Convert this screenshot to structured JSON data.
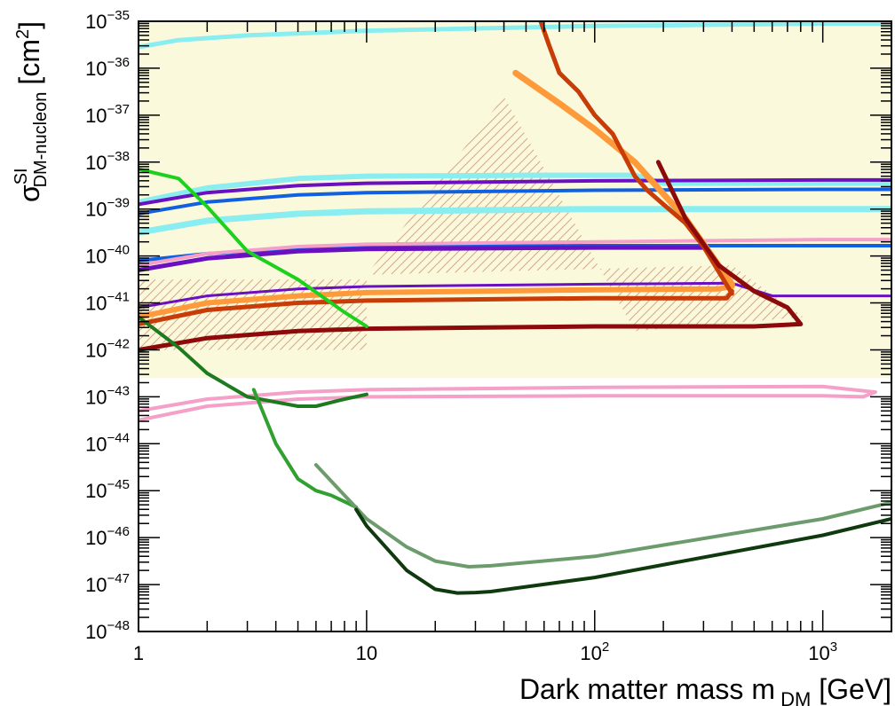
{
  "chart_data": {
    "type": "line",
    "title": "",
    "x_scale": "log",
    "y_scale": "log",
    "xlim": [
      1,
      2000
    ],
    "ylim": [
      1e-48,
      1e-35
    ],
    "grid": false,
    "legend": "none",
    "xlabel": {
      "main": "Dark matter mass m",
      "sub": "DM",
      "unit": " [GeV]"
    },
    "ylabel": {
      "sym": "σ",
      "sup": "SI",
      "sub": "DM-nucleon",
      "unit": "[cm",
      "unit_sup": "2",
      "unit_end": "]"
    },
    "x_ticks": [
      {
        "value": 1,
        "base": "1",
        "exp": ""
      },
      {
        "value": 10,
        "base": "10",
        "exp": ""
      },
      {
        "value": 100,
        "base": "10",
        "exp": "2"
      },
      {
        "value": 1000,
        "base": "10",
        "exp": "3"
      }
    ],
    "y_ticks": [
      {
        "value": -48,
        "base": "10",
        "exp": "−48"
      },
      {
        "value": -47,
        "base": "10",
        "exp": "−47"
      },
      {
        "value": -46,
        "base": "10",
        "exp": "−46"
      },
      {
        "value": -45,
        "base": "10",
        "exp": "−45"
      },
      {
        "value": -44,
        "base": "10",
        "exp": "−44"
      },
      {
        "value": -43,
        "base": "10",
        "exp": "−43"
      },
      {
        "value": -42,
        "base": "10",
        "exp": "−42"
      },
      {
        "value": -41,
        "base": "10",
        "exp": "−41"
      },
      {
        "value": -40,
        "base": "10",
        "exp": "−40"
      },
      {
        "value": -39,
        "base": "10",
        "exp": "−39"
      },
      {
        "value": -38,
        "base": "10",
        "exp": "−38"
      },
      {
        "value": -37,
        "base": "10",
        "exp": "−37"
      },
      {
        "value": -36,
        "base": "10",
        "exp": "−36"
      },
      {
        "value": -35,
        "base": "10",
        "exp": "−35"
      }
    ],
    "shaded_regions": [
      {
        "color": "#fbf9dc",
        "x": [
          1,
          2000,
          2000,
          1
        ],
        "y": [
          -35,
          -35,
          -42.6,
          -42.6
        ]
      }
    ],
    "hatched_regions": [
      {
        "color": "#e8a080",
        "x": [
          1,
          10,
          10,
          1
        ],
        "y": [
          -40.5,
          -40.5,
          -42.0,
          -42.0
        ]
      },
      {
        "color": "#e8a080",
        "x": [
          10,
          400,
          820,
          150,
          40
        ],
        "y": [
          -40.4,
          -40.2,
          -41.3,
          -41.6,
          -36.6
        ]
      }
    ],
    "series": [
      {
        "color": "#8aeef0",
        "width": 5,
        "x": [
          1,
          1.5,
          3,
          10,
          100,
          1000,
          2000
        ],
        "y": [
          -35.55,
          -35.4,
          -35.3,
          -35.2,
          -35.1,
          -35.05,
          -35.05
        ]
      },
      {
        "color": "#8aeef0",
        "width": 6,
        "x": [
          1,
          2,
          5,
          10,
          50,
          150,
          200,
          2000
        ],
        "y": [
          -38.85,
          -38.55,
          -38.35,
          -38.3,
          -38.28,
          -38.28,
          -38.45,
          -38.45
        ]
      },
      {
        "color": "#8aeef0",
        "width": 7,
        "x": [
          1,
          2,
          5,
          10,
          100,
          2000
        ],
        "y": [
          -39.5,
          -39.25,
          -39.1,
          -39.05,
          -39.0,
          -39.0
        ]
      },
      {
        "color": "#6a10c0",
        "width": 4,
        "x": [
          1,
          2,
          5,
          10,
          100,
          1000,
          2000
        ],
        "y": [
          -38.9,
          -38.65,
          -38.5,
          -38.45,
          -38.4,
          -38.38,
          -38.38
        ]
      },
      {
        "color": "#1060e0",
        "width": 4,
        "x": [
          1,
          2,
          5,
          10,
          100,
          1000,
          2000
        ],
        "y": [
          -39.1,
          -38.85,
          -38.7,
          -38.65,
          -38.6,
          -38.58,
          -38.58
        ]
      },
      {
        "color": "#1060e0",
        "width": 4,
        "x": [
          1,
          2,
          5,
          10,
          100,
          300,
          2000
        ],
        "y": [
          -40.1,
          -39.95,
          -39.85,
          -39.8,
          -39.78,
          -39.78,
          -39.78
        ]
      },
      {
        "color": "#f4a0c8",
        "width": 4,
        "x": [
          1,
          2,
          5,
          10,
          100,
          1000,
          2000
        ],
        "y": [
          -40.2,
          -39.95,
          -39.8,
          -39.75,
          -39.7,
          -39.65,
          -39.65
        ]
      },
      {
        "color": "#6a10c0",
        "width": 5,
        "x": [
          1,
          2,
          5,
          10,
          100,
          300
        ],
        "y": [
          -40.3,
          -40.05,
          -39.9,
          -39.85,
          -39.82,
          -39.82
        ]
      },
      {
        "color": "#6a10c0",
        "width": 3,
        "x": [
          1,
          2,
          5,
          10,
          100,
          400,
          600,
          2000
        ],
        "y": [
          -41.1,
          -40.85,
          -40.7,
          -40.65,
          -40.6,
          -40.58,
          -40.85,
          -40.85
        ]
      },
      {
        "color": "#ff9a3a",
        "width": 6,
        "x": [
          1,
          2,
          5,
          10,
          100,
          350,
          400
        ],
        "y": [
          -41.3,
          -41.0,
          -40.85,
          -40.78,
          -40.72,
          -40.7,
          -40.65
        ]
      },
      {
        "color": "#c83c08",
        "width": 5,
        "x": [
          1,
          2,
          5,
          10,
          100,
          380,
          400
        ],
        "y": [
          -41.45,
          -41.15,
          -41.0,
          -40.95,
          -40.9,
          -40.9,
          -40.75
        ]
      },
      {
        "color": "#f4a0c8",
        "width": 4,
        "x": [
          1,
          2,
          5,
          10,
          100,
          1000,
          1700,
          1500,
          1000,
          100,
          10,
          5,
          2,
          1
        ],
        "y": [
          -43.3,
          -43.05,
          -42.9,
          -42.85,
          -42.8,
          -42.78,
          -42.9,
          -43.0,
          -42.98,
          -42.98,
          -43.0,
          -43.05,
          -43.2,
          -43.5
        ]
      },
      {
        "color": "#ff9a3a",
        "width": 7,
        "x": [
          45,
          70,
          100,
          150,
          250,
          400
        ],
        "y": [
          -36.1,
          -36.75,
          -37.3,
          -38.0,
          -39.2,
          -40.6
        ]
      },
      {
        "color": "#c83c08",
        "width": 5,
        "x": [
          58,
          63,
          70,
          85,
          100,
          120,
          150,
          170,
          200,
          250,
          300,
          400
        ],
        "y": [
          -35.0,
          -35.5,
          -36.1,
          -36.5,
          -37.0,
          -37.4,
          -38.3,
          -38.6,
          -38.9,
          -39.3,
          -39.8,
          -40.8
        ]
      },
      {
        "color": "#8c0a0a",
        "width": 5,
        "x": [
          1,
          2,
          5,
          10,
          100,
          500,
          800,
          700,
          500,
          350,
          250,
          190
        ],
        "y": [
          -42.0,
          -41.75,
          -41.6,
          -41.55,
          -41.5,
          -41.5,
          -41.45,
          -41.1,
          -40.75,
          -40.2,
          -39.2,
          -38.0
        ]
      },
      {
        "color": "#1ed01e",
        "width": 4,
        "x": [
          1,
          1.5,
          2,
          3,
          5,
          8,
          10
        ],
        "y": [
          -38.15,
          -38.35,
          -38.95,
          -39.9,
          -40.5,
          -41.2,
          -41.5
        ]
      },
      {
        "color": "#1e7a1e",
        "width": 4,
        "x": [
          1,
          1.5,
          2,
          3,
          5,
          6,
          8,
          10
        ],
        "y": [
          -41.3,
          -41.95,
          -42.5,
          -43.0,
          -43.2,
          -43.2,
          -43.05,
          -42.95
        ]
      },
      {
        "color": "#30a030",
        "width": 4,
        "x": [
          3.2,
          4,
          5,
          6,
          7,
          9
        ],
        "y": [
          -42.85,
          -44.0,
          -44.75,
          -45.0,
          -45.1,
          -45.35
        ]
      },
      {
        "color": "#6c9c6c",
        "width": 4,
        "x": [
          6,
          8,
          10,
          15,
          20,
          28,
          35,
          100,
          1000,
          2000
        ],
        "y": [
          -44.45,
          -45.1,
          -45.6,
          -46.2,
          -46.5,
          -46.62,
          -46.6,
          -46.4,
          -45.6,
          -45.25
        ]
      },
      {
        "color": "#0e3a0e",
        "width": 4,
        "x": [
          9,
          10,
          15,
          20,
          25,
          30,
          35,
          100,
          1000,
          2000
        ],
        "y": [
          -45.4,
          -45.75,
          -46.7,
          -47.1,
          -47.18,
          -47.17,
          -47.15,
          -46.85,
          -45.95,
          -45.6
        ]
      }
    ]
  }
}
